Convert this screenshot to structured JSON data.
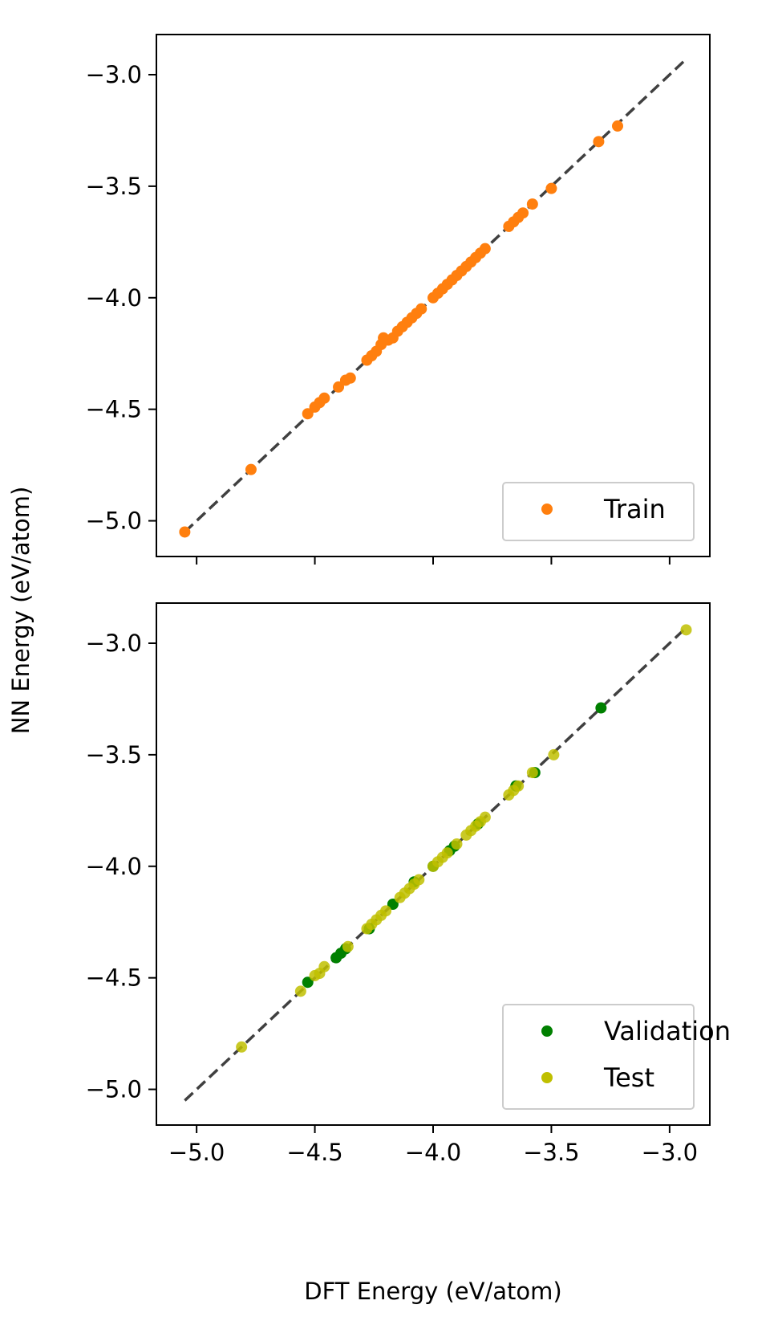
{
  "figure": {
    "xlabel": "DFT Energy (eV/atom)",
    "ylabel": "NN Energy (eV/atom)"
  },
  "chart_data": [
    {
      "type": "scatter",
      "panel": "top",
      "title": "",
      "xlim": [
        -5.17,
        -2.83
      ],
      "ylim": [
        -5.16,
        -2.82
      ],
      "x_ticks": [
        -5.0,
        -4.5,
        -4.0,
        -3.5,
        -3.0
      ],
      "x_tick_labels_visible": false,
      "y_ticks": [
        -5.0,
        -4.5,
        -4.0,
        -3.5,
        -3.0
      ],
      "y_tick_labels": [
        "−5.0",
        "−4.5",
        "−4.0",
        "−3.5",
        "−3.0"
      ],
      "grid": false,
      "reference_line": {
        "style": "dashed",
        "color": "#404040",
        "from": [
          -5.05,
          -5.05
        ],
        "to": [
          -2.93,
          -2.93
        ]
      },
      "legend": {
        "placement": "lower right"
      },
      "series": [
        {
          "name": "Train",
          "color": "#ff7f0e",
          "points": [
            [
              -5.05,
              -5.05
            ],
            [
              -4.77,
              -4.77
            ],
            [
              -4.53,
              -4.52
            ],
            [
              -4.5,
              -4.49
            ],
            [
              -4.48,
              -4.47
            ],
            [
              -4.46,
              -4.45
            ],
            [
              -4.4,
              -4.4
            ],
            [
              -4.37,
              -4.37
            ],
            [
              -4.35,
              -4.36
            ],
            [
              -4.28,
              -4.28
            ],
            [
              -4.26,
              -4.26
            ],
            [
              -4.24,
              -4.24
            ],
            [
              -4.22,
              -4.21
            ],
            [
              -4.21,
              -4.18
            ],
            [
              -4.19,
              -4.19
            ],
            [
              -4.17,
              -4.18
            ],
            [
              -4.15,
              -4.15
            ],
            [
              -4.13,
              -4.13
            ],
            [
              -4.11,
              -4.11
            ],
            [
              -4.09,
              -4.09
            ],
            [
              -4.07,
              -4.07
            ],
            [
              -4.05,
              -4.05
            ],
            [
              -4.0,
              -4.0
            ],
            [
              -3.98,
              -3.98
            ],
            [
              -3.96,
              -3.96
            ],
            [
              -3.94,
              -3.94
            ],
            [
              -3.92,
              -3.92
            ],
            [
              -3.9,
              -3.9
            ],
            [
              -3.88,
              -3.88
            ],
            [
              -3.86,
              -3.86
            ],
            [
              -3.84,
              -3.84
            ],
            [
              -3.82,
              -3.82
            ],
            [
              -3.8,
              -3.8
            ],
            [
              -3.78,
              -3.78
            ],
            [
              -3.68,
              -3.68
            ],
            [
              -3.66,
              -3.66
            ],
            [
              -3.64,
              -3.64
            ],
            [
              -3.62,
              -3.62
            ],
            [
              -3.58,
              -3.58
            ],
            [
              -3.5,
              -3.51
            ],
            [
              -3.3,
              -3.3
            ],
            [
              -3.22,
              -3.23
            ]
          ]
        }
      ]
    },
    {
      "type": "scatter",
      "panel": "bottom",
      "title": "",
      "xlim": [
        -5.17,
        -2.83
      ],
      "ylim": [
        -5.16,
        -2.82
      ],
      "x_ticks": [
        -5.0,
        -4.5,
        -4.0,
        -3.5,
        -3.0
      ],
      "x_tick_labels": [
        "−5.0",
        "−4.5",
        "−4.0",
        "−3.5",
        "−3.0"
      ],
      "y_ticks": [
        -5.0,
        -4.5,
        -4.0,
        -3.5,
        -3.0
      ],
      "y_tick_labels": [
        "−5.0",
        "−4.5",
        "−4.0",
        "−3.5",
        "−3.0"
      ],
      "grid": false,
      "reference_line": {
        "style": "dashed",
        "color": "#404040",
        "from": [
          -5.05,
          -5.05
        ],
        "to": [
          -2.93,
          -2.93
        ]
      },
      "legend": {
        "placement": "lower right"
      },
      "series": [
        {
          "name": "Validation",
          "color": "#008000",
          "points": [
            [
              -4.53,
              -4.52
            ],
            [
              -4.41,
              -4.41
            ],
            [
              -4.39,
              -4.39
            ],
            [
              -4.37,
              -4.37
            ],
            [
              -4.27,
              -4.28
            ],
            [
              -4.17,
              -4.17
            ],
            [
              -4.08,
              -4.07
            ],
            [
              -4.0,
              -4.0
            ],
            [
              -3.93,
              -3.93
            ],
            [
              -3.91,
              -3.91
            ],
            [
              -3.81,
              -3.81
            ],
            [
              -3.65,
              -3.64
            ],
            [
              -3.57,
              -3.58
            ],
            [
              -3.29,
              -3.29
            ]
          ]
        },
        {
          "name": "Test",
          "color": "#bfbf00",
          "points": [
            [
              -4.81,
              -4.81
            ],
            [
              -4.56,
              -4.56
            ],
            [
              -4.5,
              -4.49
            ],
            [
              -4.48,
              -4.48
            ],
            [
              -4.46,
              -4.45
            ],
            [
              -4.36,
              -4.36
            ],
            [
              -4.28,
              -4.28
            ],
            [
              -4.26,
              -4.26
            ],
            [
              -4.24,
              -4.24
            ],
            [
              -4.22,
              -4.22
            ],
            [
              -4.2,
              -4.2
            ],
            [
              -4.14,
              -4.14
            ],
            [
              -4.12,
              -4.12
            ],
            [
              -4.1,
              -4.1
            ],
            [
              -4.08,
              -4.08
            ],
            [
              -4.06,
              -4.06
            ],
            [
              -4.0,
              -4.0
            ],
            [
              -3.98,
              -3.98
            ],
            [
              -3.96,
              -3.96
            ],
            [
              -3.94,
              -3.94
            ],
            [
              -3.9,
              -3.9
            ],
            [
              -3.86,
              -3.86
            ],
            [
              -3.84,
              -3.84
            ],
            [
              -3.82,
              -3.82
            ],
            [
              -3.8,
              -3.8
            ],
            [
              -3.78,
              -3.78
            ],
            [
              -3.68,
              -3.68
            ],
            [
              -3.66,
              -3.66
            ],
            [
              -3.64,
              -3.64
            ],
            [
              -3.58,
              -3.58
            ],
            [
              -3.49,
              -3.5
            ],
            [
              -2.93,
              -2.94
            ]
          ]
        }
      ]
    }
  ]
}
